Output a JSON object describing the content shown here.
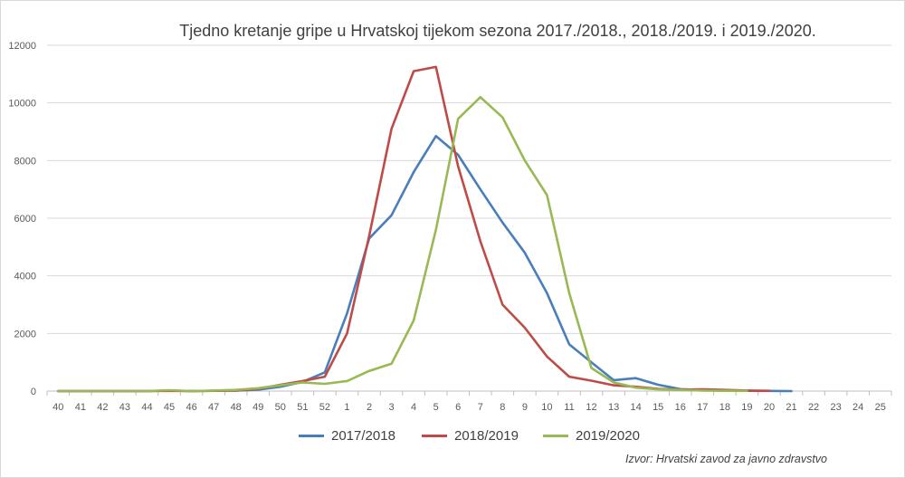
{
  "chart_data": {
    "type": "line",
    "title": "Tjedno kretanje gripe u Hrvatskoj tijekom sezona 2017./2018., 2018./2019. i 2019./2020.",
    "xlabel": "",
    "ylabel": "",
    "ylim": [
      0,
      12000
    ],
    "yticks": [
      0,
      2000,
      4000,
      6000,
      8000,
      10000,
      12000
    ],
    "grid": true,
    "legend_position": "bottom",
    "categories": [
      "40",
      "41",
      "42",
      "43",
      "44",
      "45",
      "46",
      "47",
      "48",
      "49",
      "50",
      "51",
      "52",
      "1",
      "2",
      "3",
      "4",
      "5",
      "6",
      "7",
      "8",
      "9",
      "10",
      "11",
      "12",
      "13",
      "14",
      "15",
      "16",
      "17",
      "18",
      "19",
      "20",
      "21",
      "22",
      "23",
      "24",
      "25"
    ],
    "series": [
      {
        "name": "2017/2018",
        "color": "#4a7ebb",
        "values": [
          0,
          0,
          0,
          0,
          0,
          20,
          0,
          10,
          20,
          50,
          150,
          320,
          650,
          2700,
          5300,
          6100,
          7600,
          8850,
          8200,
          7000,
          5850,
          4800,
          3400,
          1620,
          1000,
          380,
          450,
          220,
          70,
          30,
          20,
          10,
          5,
          0,
          null,
          null,
          null,
          null
        ]
      },
      {
        "name": "2018/2019",
        "color": "#be4b48",
        "values": [
          0,
          0,
          0,
          0,
          0,
          10,
          0,
          10,
          20,
          80,
          220,
          350,
          500,
          2000,
          5400,
          9100,
          11100,
          11250,
          7800,
          5200,
          3000,
          2200,
          1200,
          500,
          360,
          200,
          150,
          80,
          50,
          60,
          40,
          20,
          10,
          null,
          null,
          null,
          null,
          null
        ]
      },
      {
        "name": "2019/2020",
        "color": "#98b954",
        "values": [
          0,
          0,
          0,
          0,
          0,
          30,
          0,
          20,
          40,
          100,
          200,
          300,
          250,
          350,
          700,
          950,
          2450,
          5600,
          9450,
          10200,
          9500,
          8000,
          6800,
          3400,
          800,
          300,
          120,
          60,
          40,
          20,
          10,
          5,
          null,
          null,
          null,
          null,
          null,
          null
        ]
      }
    ],
    "source": "Izvor: Hrvatski zavod za javno zdravstvo"
  }
}
